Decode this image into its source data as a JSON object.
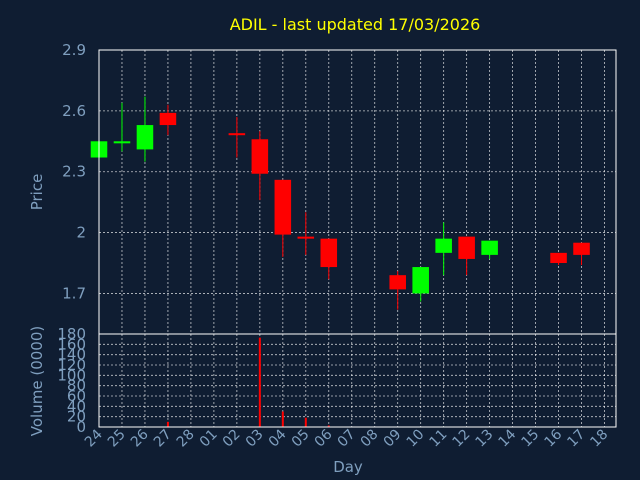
{
  "chart_data": [
    {
      "type": "candlestick",
      "title": "ADIL - last updated 17/03/2026",
      "ylabel": "Price",
      "ylim": [
        1.5,
        2.9
      ],
      "yticks": [
        "2.9",
        "2.6",
        "2.3",
        "2",
        "1.7"
      ],
      "ytick_values": [
        2.9,
        2.6,
        2.3,
        2.0,
        1.7
      ],
      "grid": true,
      "colors": {
        "up": "#00ff00",
        "down": "#ff0000",
        "background": "#0f1d32",
        "text": "#7f9fbf",
        "title": "#ffff00",
        "grid": "#ffffff"
      },
      "candles": [
        {
          "day": "24",
          "open": 2.37,
          "high": 2.45,
          "low": 2.37,
          "close": 2.45
        },
        {
          "day": "25",
          "open": 2.44,
          "high": 2.64,
          "low": 2.4,
          "close": 2.45
        },
        {
          "day": "26",
          "open": 2.41,
          "high": 2.67,
          "low": 2.35,
          "close": 2.53
        },
        {
          "day": "27",
          "open": 2.59,
          "high": 2.63,
          "low": 2.48,
          "close": 2.53
        },
        {
          "day": "02",
          "open": 2.49,
          "high": 2.57,
          "low": 2.37,
          "close": 2.48
        },
        {
          "day": "03",
          "open": 2.46,
          "high": 2.5,
          "low": 2.16,
          "close": 2.29
        },
        {
          "day": "04",
          "open": 2.26,
          "high": 2.26,
          "low": 1.88,
          "close": 1.99
        },
        {
          "day": "05",
          "open": 1.98,
          "high": 2.1,
          "low": 1.89,
          "close": 1.97
        },
        {
          "day": "06",
          "open": 1.97,
          "high": 1.97,
          "low": 1.77,
          "close": 1.83
        },
        {
          "day": "09",
          "open": 1.79,
          "high": 1.81,
          "low": 1.62,
          "close": 1.72
        },
        {
          "day": "10",
          "open": 1.7,
          "high": 1.83,
          "low": 1.66,
          "close": 1.83
        },
        {
          "day": "11",
          "open": 1.9,
          "high": 2.05,
          "low": 1.79,
          "close": 1.97
        },
        {
          "day": "12",
          "open": 1.98,
          "high": 1.98,
          "low": 1.79,
          "close": 1.87
        },
        {
          "day": "13",
          "open": 1.89,
          "high": 1.96,
          "low": 1.87,
          "close": 1.96
        },
        {
          "day": "16",
          "open": 1.9,
          "high": 1.9,
          "low": 1.84,
          "close": 1.85
        },
        {
          "day": "17",
          "open": 1.95,
          "high": 1.95,
          "low": 1.84,
          "close": 1.89
        }
      ]
    },
    {
      "type": "bar",
      "ylabel": "Volume (0000)",
      "xlabel": "Day",
      "ylim": [
        0,
        180
      ],
      "yticks": [
        "180",
        "160",
        "140",
        "120",
        "100",
        "80",
        "60",
        "40",
        "20",
        "0"
      ],
      "ytick_values": [
        180,
        160,
        140,
        120,
        100,
        80,
        60,
        40,
        20,
        0
      ],
      "categories": [
        "24",
        "25",
        "26",
        "27",
        "28",
        "01",
        "02",
        "03",
        "04",
        "05",
        "06",
        "07",
        "08",
        "09",
        "10",
        "11",
        "12",
        "13",
        "14",
        "15",
        "16",
        "17",
        "18"
      ],
      "values": [
        0,
        0,
        1,
        10,
        0,
        0,
        0,
        173,
        30,
        18,
        3,
        0,
        0,
        0,
        0,
        1,
        0,
        0,
        0,
        0,
        0,
        0,
        0
      ],
      "bar_colors": [
        "#00ff00",
        "#00ff00",
        "#00ff00",
        "#ff0000",
        "#00ff00",
        "#00ff00",
        "#ff0000",
        "#ff0000",
        "#ff0000",
        "#ff0000",
        "#ff0000",
        "#00ff00",
        "#00ff00",
        "#ff0000",
        "#00ff00",
        "#00ff00",
        "#ff0000",
        "#00ff00",
        "#00ff00",
        "#00ff00",
        "#ff0000",
        "#ff0000",
        "#00ff00"
      ]
    }
  ]
}
